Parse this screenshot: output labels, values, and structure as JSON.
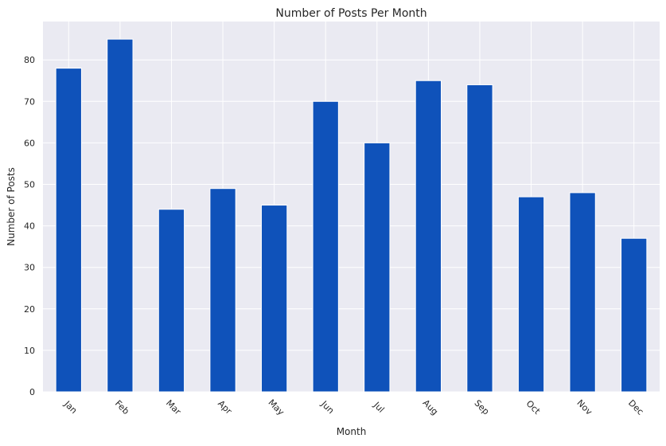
{
  "chart_data": {
    "type": "bar",
    "title": "Number of Posts Per Month",
    "xlabel": "Month",
    "ylabel": "Number of Posts",
    "categories": [
      "Jan",
      "Feb",
      "Mar",
      "Apr",
      "May",
      "Jun",
      "Jul",
      "Aug",
      "Sep",
      "Oct",
      "Nov",
      "Dec"
    ],
    "values": [
      78,
      85,
      44,
      49,
      45,
      70,
      60,
      75,
      74,
      47,
      48,
      37
    ],
    "ylim": [
      0,
      89.25
    ],
    "yticks": [
      0,
      10,
      20,
      30,
      40,
      50,
      60,
      70,
      80
    ],
    "grid": true,
    "legend": false,
    "colors": {
      "bar": "#0f52ba",
      "plot_background": "#eaeaf2",
      "grid": "#ffffff"
    }
  }
}
